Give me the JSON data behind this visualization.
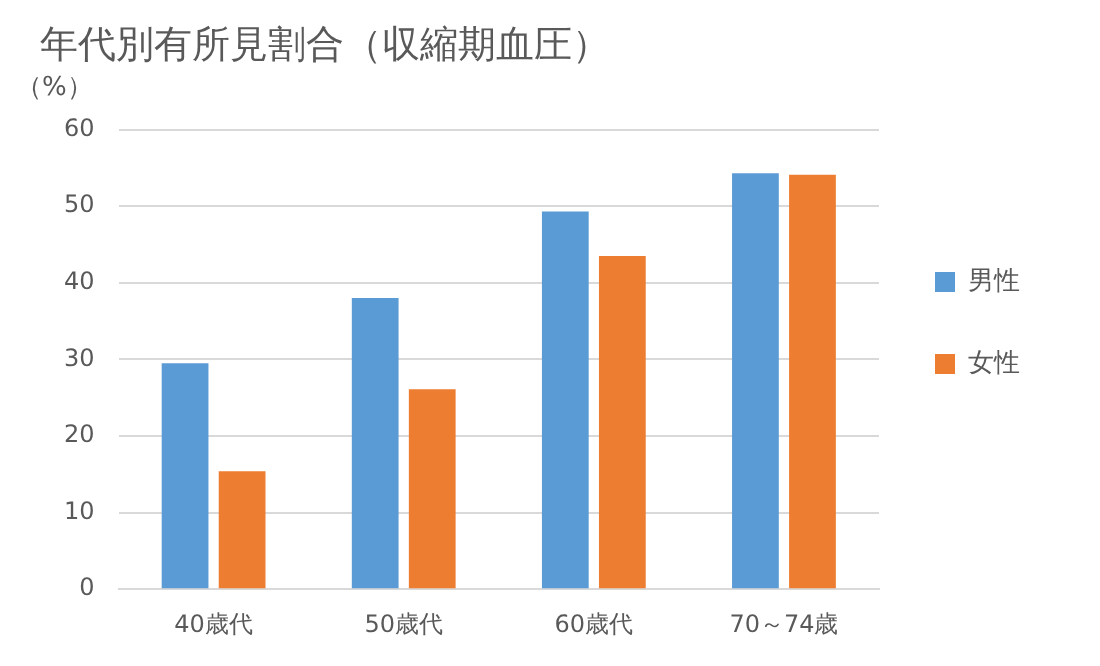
{
  "chart_data": {
    "type": "bar",
    "title": "年代別有所見割合（収縮期血圧）",
    "ylabel": "（%）",
    "categories": [
      "40歳代",
      "50歳代",
      "60歳代",
      "70～74歳"
    ],
    "series": [
      {
        "name": "男性",
        "color": "#5b9bd5",
        "values": [
          29.5,
          38.0,
          49.3,
          54.3
        ]
      },
      {
        "name": "女性",
        "color": "#ed7d31",
        "values": [
          15.4,
          26.1,
          43.5,
          54.1
        ]
      }
    ],
    "ylim": [
      0,
      60
    ],
    "yticks": [
      0,
      10,
      20,
      30,
      40,
      50,
      60
    ],
    "grid": "y",
    "legend": "right"
  }
}
